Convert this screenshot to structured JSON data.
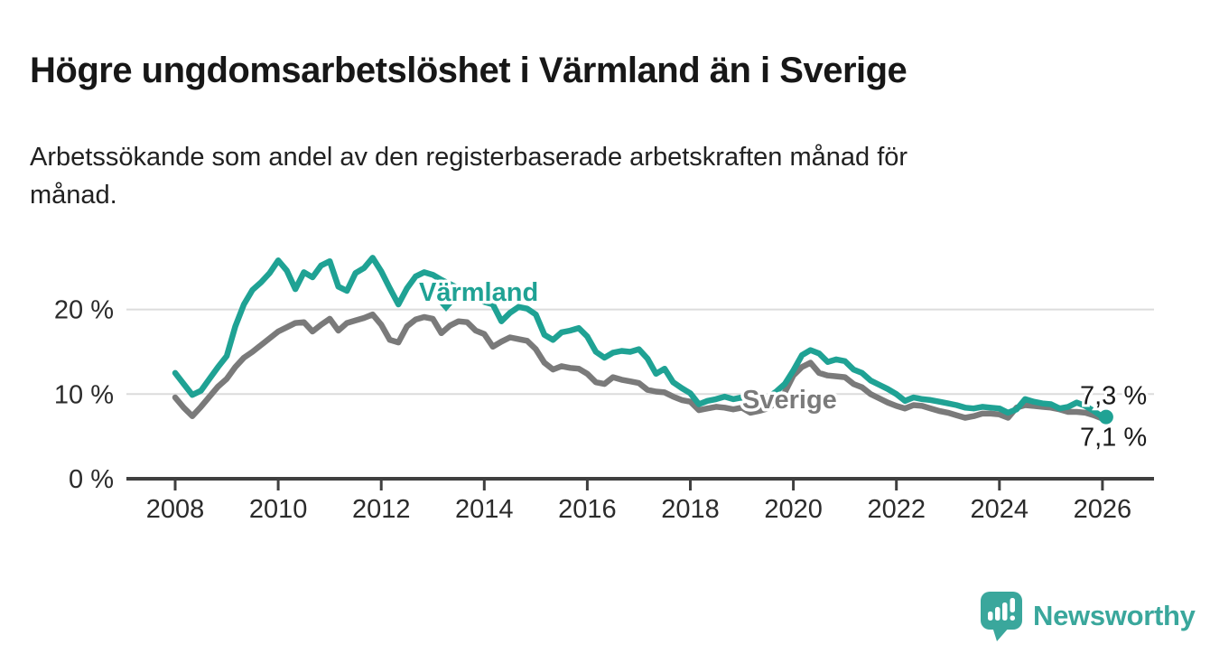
{
  "header": {
    "title": "Högre ungdomsarbetslöshet i Värmland än i Sverige",
    "subtitle_line1": "Arbetssökande som andel av den registerbaserade arbetskraften månad för",
    "subtitle_line2": "månad."
  },
  "chart_data": {
    "type": "line",
    "x_start": 2008.0,
    "x_step_years": 0.166667,
    "x_tick_years": [
      2008,
      2010,
      2012,
      2014,
      2016,
      2018,
      2020,
      2022,
      2024,
      2026
    ],
    "x_tick_labels": [
      "2008",
      "2010",
      "2012",
      "2014",
      "2016",
      "2018",
      "2020",
      "2022",
      "2024",
      "2026"
    ],
    "y_ticks": [
      0,
      10,
      20
    ],
    "y_tick_labels": [
      "0 %",
      "10 %",
      "20 %"
    ],
    "ylim": [
      0,
      27.5
    ],
    "xlim": [
      2007.05,
      2027.0
    ],
    "xlabel": "",
    "ylabel": "",
    "grid": "horizontal",
    "title": "Högre ungdomsarbetslöshet i Värmland än i Sverige",
    "series": [
      {
        "name": "Sverige",
        "label_text": "Sverige",
        "color": "#7a7a7a",
        "end_label": "7,1 %",
        "end_dot": false,
        "values": [
          9.6,
          8.4,
          7.4,
          8.5,
          9.7,
          10.9,
          11.8,
          13.2,
          14.3,
          15.0,
          15.8,
          16.6,
          17.4,
          17.9,
          18.4,
          18.5,
          17.4,
          18.2,
          18.9,
          17.5,
          18.4,
          18.7,
          19.0,
          19.4,
          18.2,
          16.4,
          16.1,
          18.0,
          18.8,
          19.1,
          18.9,
          17.2,
          18.1,
          18.6,
          18.5,
          17.5,
          17.1,
          15.6,
          16.2,
          16.7,
          16.5,
          16.3,
          15.3,
          13.7,
          12.9,
          13.3,
          13.1,
          13.0,
          12.4,
          11.4,
          11.2,
          12.0,
          11.7,
          11.5,
          11.3,
          10.5,
          10.3,
          10.2,
          9.7,
          9.3,
          9.1,
          8.1,
          8.3,
          8.5,
          8.4,
          8.2,
          8.4,
          7.8,
          8.0,
          8.3,
          9.0,
          10.2,
          12.2,
          13.2,
          13.7,
          12.5,
          12.2,
          12.1,
          12.0,
          11.2,
          10.8,
          10.0,
          9.5,
          9.0,
          8.6,
          8.3,
          8.7,
          8.6,
          8.3,
          8.0,
          7.8,
          7.5,
          7.2,
          7.4,
          7.7,
          7.7,
          7.6,
          7.2,
          8.4,
          8.7,
          8.6,
          8.5,
          8.4,
          8.2,
          7.9,
          7.9,
          7.8,
          7.5,
          7.1
        ]
      },
      {
        "name": "Värmland",
        "label_text": "Värmland",
        "color": "#1fa294",
        "end_label": "7,3 %",
        "end_dot": true,
        "values": [
          12.5,
          11.2,
          9.9,
          10.4,
          11.8,
          13.2,
          14.5,
          18.0,
          20.6,
          22.3,
          23.2,
          24.3,
          25.8,
          24.6,
          22.4,
          24.4,
          23.8,
          25.2,
          25.7,
          22.7,
          22.2,
          24.3,
          24.9,
          26.1,
          24.5,
          22.5,
          20.6,
          22.5,
          23.9,
          24.4,
          24.1,
          23.5,
          23.0,
          22.5,
          22.0,
          21.4,
          20.9,
          20.6,
          18.6,
          19.6,
          20.3,
          20.1,
          19.4,
          17.0,
          16.4,
          17.3,
          17.5,
          17.8,
          16.8,
          15.0,
          14.3,
          14.9,
          15.1,
          15.0,
          15.3,
          14.2,
          12.4,
          13.0,
          11.4,
          10.7,
          10.1,
          8.8,
          9.2,
          9.4,
          9.7,
          9.4,
          9.6,
          8.8,
          9.3,
          9.6,
          10.3,
          11.2,
          12.8,
          14.6,
          15.2,
          14.8,
          13.8,
          14.1,
          13.9,
          12.9,
          12.5,
          11.6,
          11.1,
          10.6,
          10.0,
          9.2,
          9.6,
          9.4,
          9.3,
          9.1,
          8.9,
          8.7,
          8.4,
          8.3,
          8.5,
          8.4,
          8.3,
          7.8,
          8.2,
          9.4,
          9.1,
          8.9,
          8.8,
          8.3,
          8.5,
          9.0,
          8.6,
          8.0,
          7.3
        ]
      }
    ]
  },
  "footer": {
    "brand": "Newsworthy",
    "brand_color": "#3aa79c",
    "logo_icon": "speech-bubble-bar-chart-icon"
  }
}
